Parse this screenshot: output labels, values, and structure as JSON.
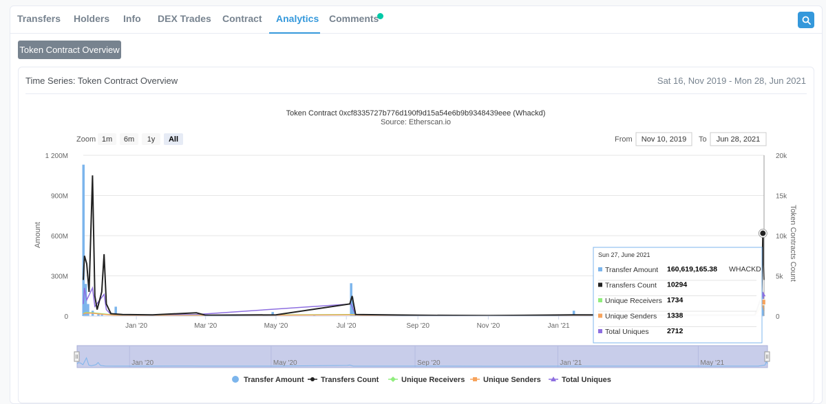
{
  "tabs": [
    {
      "label": "Transfers"
    },
    {
      "label": "Holders"
    },
    {
      "label": "Info"
    },
    {
      "label": "DEX Trades"
    },
    {
      "label": "Contract"
    },
    {
      "label": "Analytics"
    },
    {
      "label": "Comments"
    }
  ],
  "overview_button": "Token Contract Overview",
  "panel": {
    "title": "Time Series: Token Contract Overview",
    "date_range": "Sat 16, Nov 2019 - Mon 28, Jun 2021"
  },
  "colors": {
    "accent": "#3498db",
    "new_dot": "#00c9a7",
    "transfer_amount": "#7cb5ec",
    "transfers_count": "#222222",
    "unique_receivers": "#90ed7d",
    "unique_senders": "#f7a35c",
    "total_uniques": "#8d6ee0"
  },
  "chart_data": {
    "type": "line",
    "title": "Token Contract 0xcf8335727b776d190f9d15a54e6b9b9348439eee (Whackd)",
    "subtitle": "Source: Etherscan.io",
    "zoom_label": "Zoom",
    "zoom_buttons": [
      "1m",
      "6m",
      "1y",
      "All"
    ],
    "zoom_selected": "All",
    "from_label": "From",
    "from_value": "Nov 10, 2019",
    "to_label": "To",
    "to_value": "Jun 28, 2021",
    "xlabel": "",
    "ylabel_left": "Amount",
    "ylabel_right": "Token Contracts Count",
    "x_ticks": [
      "Jan '20",
      "Mar '20",
      "May '20",
      "Jul '20",
      "Sep '20",
      "Nov '20",
      "Jan '21"
    ],
    "y_left_ticks": [
      "0",
      "300M",
      "600M",
      "900M",
      "1 200M"
    ],
    "y_right_ticks": [
      "0",
      "5k",
      "10k",
      "15k",
      "20k"
    ],
    "ylim_left": [
      0,
      1200000000
    ],
    "ylim_right": [
      0,
      20000
    ],
    "x_range": [
      "2019-11-16",
      "2021-06-28"
    ],
    "navigator_ticks": [
      "Jan '20",
      "May '20",
      "Sep '20",
      "Jan '21",
      "May '21"
    ],
    "series": [
      {
        "name": "Transfer Amount",
        "axis": "left",
        "style": "bar",
        "points": [
          [
            "2019-11-16",
            1130000000
          ],
          [
            "2019-11-18",
            240000000
          ],
          [
            "2019-11-20",
            90000000
          ],
          [
            "2019-11-24",
            40000000
          ],
          [
            "2019-11-29",
            20000000
          ],
          [
            "2019-12-02",
            10000000
          ],
          [
            "2019-12-14",
            70000000
          ],
          [
            "2020-02-22",
            8000000
          ],
          [
            "2020-04-28",
            30000000
          ],
          [
            "2020-06-03",
            10000000
          ],
          [
            "2020-07-05",
            245000000
          ],
          [
            "2020-07-06",
            140000000
          ],
          [
            "2020-07-08",
            40000000
          ],
          [
            "2021-01-14",
            40000000
          ],
          [
            "2021-06-27",
            160619165.38
          ]
        ]
      },
      {
        "name": "Transfers Count",
        "axis": "right",
        "style": "line",
        "points": [
          [
            "2019-11-16",
            4500
          ],
          [
            "2019-11-17",
            7500
          ],
          [
            "2019-11-19",
            6500
          ],
          [
            "2019-11-21",
            3000
          ],
          [
            "2019-11-24",
            17500
          ],
          [
            "2019-11-26",
            2500
          ],
          [
            "2019-11-28",
            800
          ],
          [
            "2019-12-02",
            3000
          ],
          [
            "2019-12-04",
            7700
          ],
          [
            "2019-12-06",
            1500
          ],
          [
            "2019-12-10",
            300
          ],
          [
            "2019-12-20",
            200
          ],
          [
            "2020-01-15",
            150
          ],
          [
            "2020-02-22",
            400
          ],
          [
            "2020-03-01",
            100
          ],
          [
            "2020-05-01",
            150
          ],
          [
            "2020-07-04",
            1500
          ],
          [
            "2020-07-06",
            2500
          ],
          [
            "2020-07-09",
            200
          ],
          [
            "2020-09-01",
            100
          ],
          [
            "2020-11-01",
            60
          ],
          [
            "2021-01-14",
            150
          ],
          [
            "2021-06-20",
            100
          ],
          [
            "2021-06-26",
            2500
          ],
          [
            "2021-06-27",
            10294
          ],
          [
            "2021-06-28",
            4500
          ]
        ]
      },
      {
        "name": "Unique Receivers",
        "axis": "right",
        "style": "line",
        "points": [
          [
            "2019-11-16",
            300
          ],
          [
            "2019-11-18",
            450
          ],
          [
            "2019-11-24",
            400
          ],
          [
            "2019-12-05",
            250
          ],
          [
            "2019-12-20",
            40
          ],
          [
            "2020-07-06",
            200
          ],
          [
            "2020-08-01",
            20
          ],
          [
            "2021-06-20",
            20
          ],
          [
            "2021-06-27",
            1734
          ],
          [
            "2021-06-28",
            900
          ]
        ]
      },
      {
        "name": "Unique Senders",
        "axis": "right",
        "style": "line",
        "points": [
          [
            "2019-11-16",
            250
          ],
          [
            "2019-11-18",
            380
          ],
          [
            "2019-11-24",
            350
          ],
          [
            "2019-12-05",
            200
          ],
          [
            "2019-12-20",
            30
          ],
          [
            "2020-07-06",
            150
          ],
          [
            "2020-08-01",
            15
          ],
          [
            "2021-06-20",
            15
          ],
          [
            "2021-06-27",
            1338
          ],
          [
            "2021-06-28",
            700
          ]
        ]
      },
      {
        "name": "Total Uniques",
        "axis": "right",
        "style": "line",
        "points": [
          [
            "2019-11-16",
            1500
          ],
          [
            "2019-11-17",
            3500
          ],
          [
            "2019-11-19",
            2000
          ],
          [
            "2019-11-24",
            3500
          ],
          [
            "2019-11-26",
            1200
          ],
          [
            "2019-12-04",
            2700
          ],
          [
            "2019-12-06",
            800
          ],
          [
            "2019-12-10",
            200
          ],
          [
            "2019-12-20",
            100
          ],
          [
            "2020-02-22",
            200
          ],
          [
            "2020-07-05",
            1500
          ],
          [
            "2020-07-09",
            150
          ],
          [
            "2020-09-01",
            60
          ],
          [
            "2021-06-20",
            60
          ],
          [
            "2021-06-27",
            2712
          ],
          [
            "2021-06-28",
            1500
          ]
        ]
      }
    ],
    "legend_position": "bottom",
    "tooltip": {
      "date": "Sun 27, June 2021",
      "rows": [
        {
          "label": "Transfer Amount",
          "value": "160,619,165.38",
          "unit": "WHACKD"
        },
        {
          "label": "Transfers Count",
          "value": "10294",
          "unit": ""
        },
        {
          "label": "Unique Receivers",
          "value": "1734",
          "unit": ""
        },
        {
          "label": "Unique Senders",
          "value": "1338",
          "unit": ""
        },
        {
          "label": "Total Uniques",
          "value": "2712",
          "unit": ""
        }
      ]
    }
  }
}
